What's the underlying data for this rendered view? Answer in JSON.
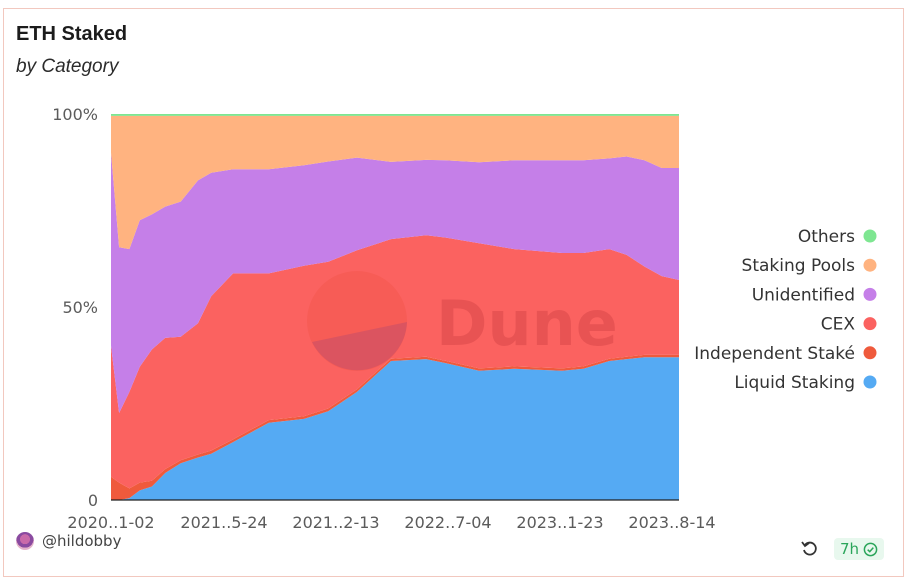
{
  "header": {
    "title": "ETH Staked",
    "subtitle": "by Category"
  },
  "footer": {
    "user": "@hildobby",
    "age": "7h"
  },
  "watermark": "Dune",
  "colors": {
    "Others": "#7ee691",
    "Staking Pools": "#ffb380",
    "Unidentified": "#c57fe8",
    "CEX": "#fb6260",
    "Independent Stakers": "#ef5a3c",
    "Liquid Staking": "#55aaf3",
    "accent_border": "#f2c8bf"
  },
  "chart_data": {
    "type": "area",
    "stacked": true,
    "normalized": true,
    "title": "ETH Staked",
    "subtitle": "by Category",
    "x_ticks": [
      "2020..1-02",
      "2021..5-24",
      "2021..2-13",
      "2022..7-04",
      "2023..1-23",
      "2023..8-14"
    ],
    "x": [
      "2020-12-01",
      "2020-12-15",
      "2021-01-02",
      "2021-01-20",
      "2021-02-10",
      "2021-03-05",
      "2021-04-01",
      "2021-05-01",
      "2021-05-24",
      "2021-07-01",
      "2021-09-01",
      "2021-11-01",
      "2021-12-13",
      "2022-02-01",
      "2022-04-01",
      "2022-06-01",
      "2022-07-04",
      "2022-09-01",
      "2022-11-01",
      "2023-01-23",
      "2023-03-01",
      "2023-04-15",
      "2023-05-15",
      "2023-06-15",
      "2023-07-15",
      "2023-08-14"
    ],
    "series": [
      {
        "name": "Liquid Staking",
        "values": [
          0.0,
          0.0,
          0.5,
          2.5,
          3.5,
          7.0,
          9.5,
          11.0,
          12.0,
          15.0,
          20.0,
          21.0,
          23.0,
          28.0,
          36.0,
          36.5,
          35.5,
          33.5,
          34.0,
          33.5,
          34.0,
          36.0,
          36.5,
          37.0,
          37.0,
          37.0
        ]
      },
      {
        "name": "Independent Stakers",
        "values": [
          6.0,
          4.5,
          2.5,
          2.0,
          1.5,
          1.0,
          0.8,
          0.8,
          0.8,
          0.7,
          0.7,
          0.7,
          0.7,
          0.7,
          0.6,
          0.6,
          0.6,
          0.6,
          0.6,
          0.6,
          0.6,
          0.6,
          0.6,
          0.6,
          0.6,
          0.6
        ]
      },
      {
        "name": "CEX",
        "values": [
          34.0,
          18.0,
          25.0,
          30.0,
          34.0,
          34.0,
          32.0,
          34.0,
          40.0,
          43.0,
          38.0,
          39.0,
          38.0,
          36.0,
          31.0,
          31.5,
          31.9,
          32.4,
          30.4,
          29.9,
          29.4,
          28.4,
          26.4,
          22.9,
          20.4,
          19.4
        ]
      },
      {
        "name": "Unidentified",
        "values": [
          50.0,
          43.0,
          37.0,
          38.0,
          35.0,
          34.0,
          35.0,
          37.0,
          32.0,
          27.0,
          27.0,
          26.0,
          26.0,
          24.0,
          20.0,
          19.5,
          20.0,
          21.0,
          23.0,
          24.0,
          24.0,
          23.5,
          25.5,
          27.5,
          28.0,
          29.0
        ]
      },
      {
        "name": "Staking Pools",
        "values": [
          9.5,
          34.0,
          34.5,
          27.0,
          25.5,
          23.5,
          22.2,
          16.7,
          14.7,
          13.8,
          13.8,
          12.8,
          11.8,
          10.8,
          11.9,
          11.4,
          11.5,
          12.0,
          11.5,
          11.5,
          11.5,
          11.0,
          10.5,
          11.5,
          13.5,
          13.5
        ]
      },
      {
        "name": "Others",
        "values": [
          0.5,
          0.5,
          0.5,
          0.5,
          0.5,
          0.5,
          0.5,
          0.5,
          0.5,
          0.5,
          0.5,
          0.5,
          0.5,
          0.5,
          0.5,
          0.5,
          0.5,
          0.5,
          0.5,
          0.5,
          0.5,
          0.5,
          0.5,
          0.5,
          0.5,
          0.5
        ]
      }
    ],
    "y_ticks": [
      "0",
      "50%",
      "100%"
    ],
    "ylim": [
      0,
      100
    ],
    "legend": {
      "position": "right",
      "entries": [
        "Others",
        "Staking Pools",
        "Unidentified",
        "CEX",
        "Independent Staké",
        "Liquid Staking"
      ]
    },
    "grid": false
  }
}
